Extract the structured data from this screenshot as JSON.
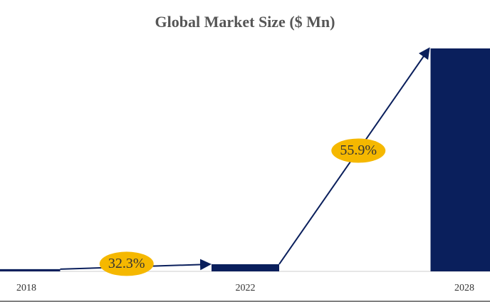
{
  "chart_data": {
    "type": "bar",
    "title": "Global Market Size ($ Mn)",
    "categories": [
      "2018",
      "2022",
      "2028"
    ],
    "values": [
      1,
      3.2,
      100
    ],
    "color": "#0a1f5c",
    "growth_labels": [
      "32.3%",
      "55.9%"
    ],
    "label_color": "#f5b800"
  }
}
